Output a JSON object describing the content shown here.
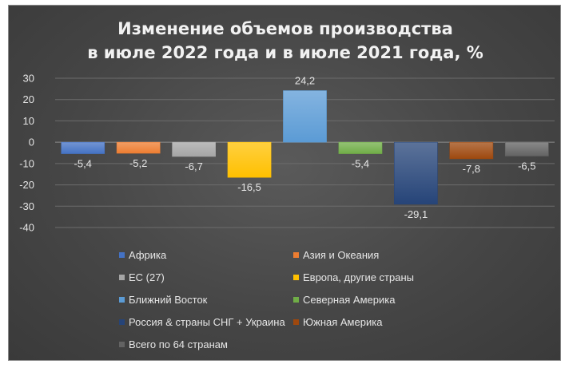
{
  "chart_data": {
    "type": "bar",
    "title": [
      "Изменение объемов производства",
      "в июле 2022 года и в июле 2021 года, %"
    ],
    "xlabel": "",
    "ylabel": "",
    "ylim": [
      -40,
      30
    ],
    "yticks": [
      30,
      20,
      10,
      0,
      -10,
      -20,
      -30,
      -40
    ],
    "grid": true,
    "legend_position": "bottom",
    "categories": [
      "Африка",
      "Азия и Океания",
      "ЕС (27)",
      "Европа, другие страны",
      "Ближний Восток",
      "Северная Америка",
      "Россия & страны СНГ + Украина",
      "Южная Америка",
      "Всего по 64 странам"
    ],
    "values": [
      -5.4,
      -5.2,
      -6.7,
      -16.5,
      24.2,
      -5.4,
      -29.1,
      -7.8,
      -6.5
    ],
    "data_labels": [
      "-5,4",
      "-5,2",
      "-6,7",
      "-16,5",
      "24,2",
      "-5,4",
      "-29,1",
      "-7,8",
      "-6,5"
    ],
    "colors": [
      "#4472C4",
      "#ED7D31",
      "#A5A5A5",
      "#FFC000",
      "#5B9BD5",
      "#70AD47",
      "#264478",
      "#9E480E",
      "#636363"
    ]
  }
}
